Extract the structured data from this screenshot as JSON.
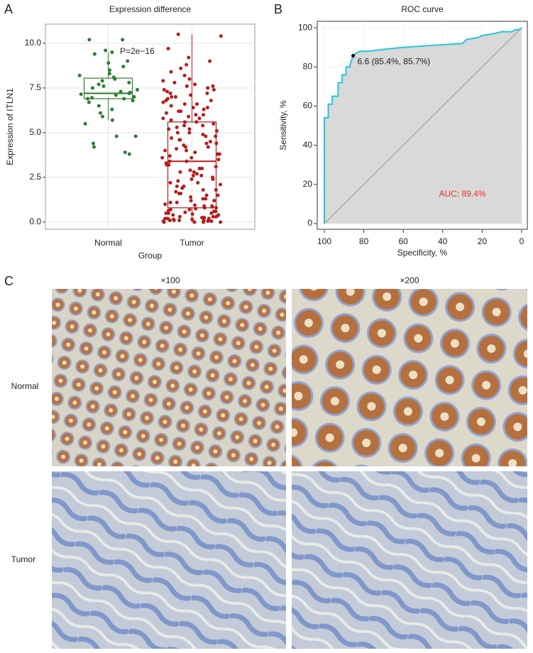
{
  "figure": {
    "panels": [
      "A",
      "B",
      "C"
    ],
    "magnifications": [
      "×100",
      "×200"
    ],
    "rows": [
      "Normal",
      "Tumor"
    ]
  },
  "chart_data": [
    {
      "type": "box",
      "title": "Expression difference",
      "x_label": "Group",
      "y_label": "Expression of ITLN1",
      "annotation": "P=2e−16",
      "categories": [
        "Normal",
        "Tumor"
      ],
      "grid": true,
      "ylim": [
        -0.4,
        11.07
      ],
      "yticks": [
        {
          "value": 0,
          "label": "0.0"
        },
        {
          "value": 2.5,
          "label": "2.5"
        },
        {
          "value": 5,
          "label": "5.0"
        },
        {
          "value": 7.5,
          "label": "7.5"
        },
        {
          "value": 10,
          "label": "10.0"
        }
      ],
      "boxes": [
        {
          "color": "#2e7d32",
          "min": 5.7,
          "q1": 6.9,
          "median": 7.2,
          "q3": 8.05,
          "max": 9.5,
          "points": [
            10.2,
            10.2,
            9.5,
            9.6,
            9.4,
            9.0,
            8.7,
            8.9,
            8.5,
            8.3,
            8.2,
            8.1,
            8.0,
            7.9,
            7.8,
            7.7,
            7.6,
            7.5,
            7.4,
            7.3,
            7.25,
            7.2,
            7.15,
            7.1,
            7.0,
            6.95,
            6.9,
            6.9,
            6.8,
            6.7,
            6.5,
            6.3,
            6.1,
            5.9,
            5.7,
            5.5,
            4.8,
            4.8,
            4.4,
            4.2,
            3.9,
            3.8
          ]
        },
        {
          "color": "#b71c1c",
          "min": 0,
          "q1": 0.8,
          "median": 3.4,
          "q3": 5.6,
          "max": 10.5,
          "points": [
            10.5,
            10.4,
            9.7,
            9.2,
            9.0,
            8.8,
            8.6,
            8.4,
            8.2,
            8.0,
            7.9,
            7.8,
            7.7,
            7.6,
            7.5,
            7.4,
            7.3,
            7.2,
            7.1,
            7.0,
            6.9,
            6.8,
            6.7,
            6.6,
            6.5,
            6.4,
            6.3,
            6.2,
            6.1,
            6.0,
            5.9,
            5.8,
            5.7,
            5.6,
            5.5,
            5.4,
            5.3,
            5.2,
            5.1,
            5.0,
            4.9,
            4.8,
            4.7,
            4.6,
            4.5,
            4.4,
            4.3,
            4.2,
            4.1,
            4.0,
            3.9,
            3.8,
            3.7,
            3.6,
            3.5,
            3.4,
            3.3,
            3.2,
            3.1,
            3.0,
            2.9,
            2.8,
            2.7,
            2.6,
            2.5,
            2.4,
            2.3,
            2.2,
            2.1,
            2.0,
            1.9,
            1.8,
            1.7,
            1.6,
            1.5,
            1.4,
            1.3,
            1.2,
            1.1,
            1.0,
            7.6,
            7.2,
            6.8,
            6.4,
            6.0,
            5.6,
            5.2,
            4.8,
            4.4,
            4.0,
            3.6,
            3.2,
            2.8,
            2.4,
            2.0,
            1.6,
            1.2,
            0.9,
            0.8,
            0.7,
            0.6,
            0.5,
            0.4,
            0.3,
            0.2,
            0.1,
            0.05,
            0.0,
            0.95,
            0.85,
            0.75,
            0.65,
            0.55,
            0.45,
            0.35,
            0.25,
            0.15,
            0.1,
            0.05,
            0.0,
            0.9,
            0.7,
            0.5,
            0.3,
            0.2,
            0.1,
            0.0,
            0.6,
            0.4,
            0.2,
            0.1,
            0.0,
            1.1,
            1.3,
            1.5,
            1.8,
            2.2,
            2.6,
            3.0,
            3.4,
            3.8,
            4.2,
            4.6,
            5.0,
            5.4,
            5.8,
            6.2,
            6.6,
            7.0,
            7.4,
            0.8,
            0.3,
            0.15,
            0.05,
            0.0,
            0.5,
            0.25,
            0.1
          ]
        }
      ]
    },
    {
      "type": "line",
      "title": "ROC curve",
      "x_label": "Specificity, %",
      "y_label": "Sensitivity, %",
      "color": "#26c6da",
      "area_color": "#d9d9d9",
      "grid": true,
      "xlim": [
        103.6,
        -2.9
      ],
      "ylim": [
        -2.9,
        103.3
      ],
      "xticks": [
        100,
        80,
        60,
        40,
        20,
        0
      ],
      "yticks": [
        0,
        20,
        40,
        60,
        80,
        100
      ],
      "x": [
        100,
        100,
        98,
        98,
        96,
        96,
        93,
        93,
        91,
        91,
        89,
        89,
        87,
        87,
        85.4,
        84,
        82,
        78,
        70,
        60,
        45,
        30,
        28,
        22,
        20,
        14,
        10,
        5,
        3,
        1,
        0
      ],
      "values": [
        0,
        54,
        54,
        61,
        61,
        65,
        65,
        72,
        72,
        76,
        76,
        80,
        80,
        81,
        85.7,
        87,
        88,
        88,
        89,
        90,
        91,
        92,
        94,
        95,
        96,
        97,
        98,
        98,
        99,
        99,
        100
      ],
      "point": {
        "x": 85.4,
        "y": 85.7,
        "label": "6.6 (85.4%, 85.7%)"
      },
      "annotation": "AUC: 89.4%",
      "annotation_color": "#e8312a"
    }
  ]
}
